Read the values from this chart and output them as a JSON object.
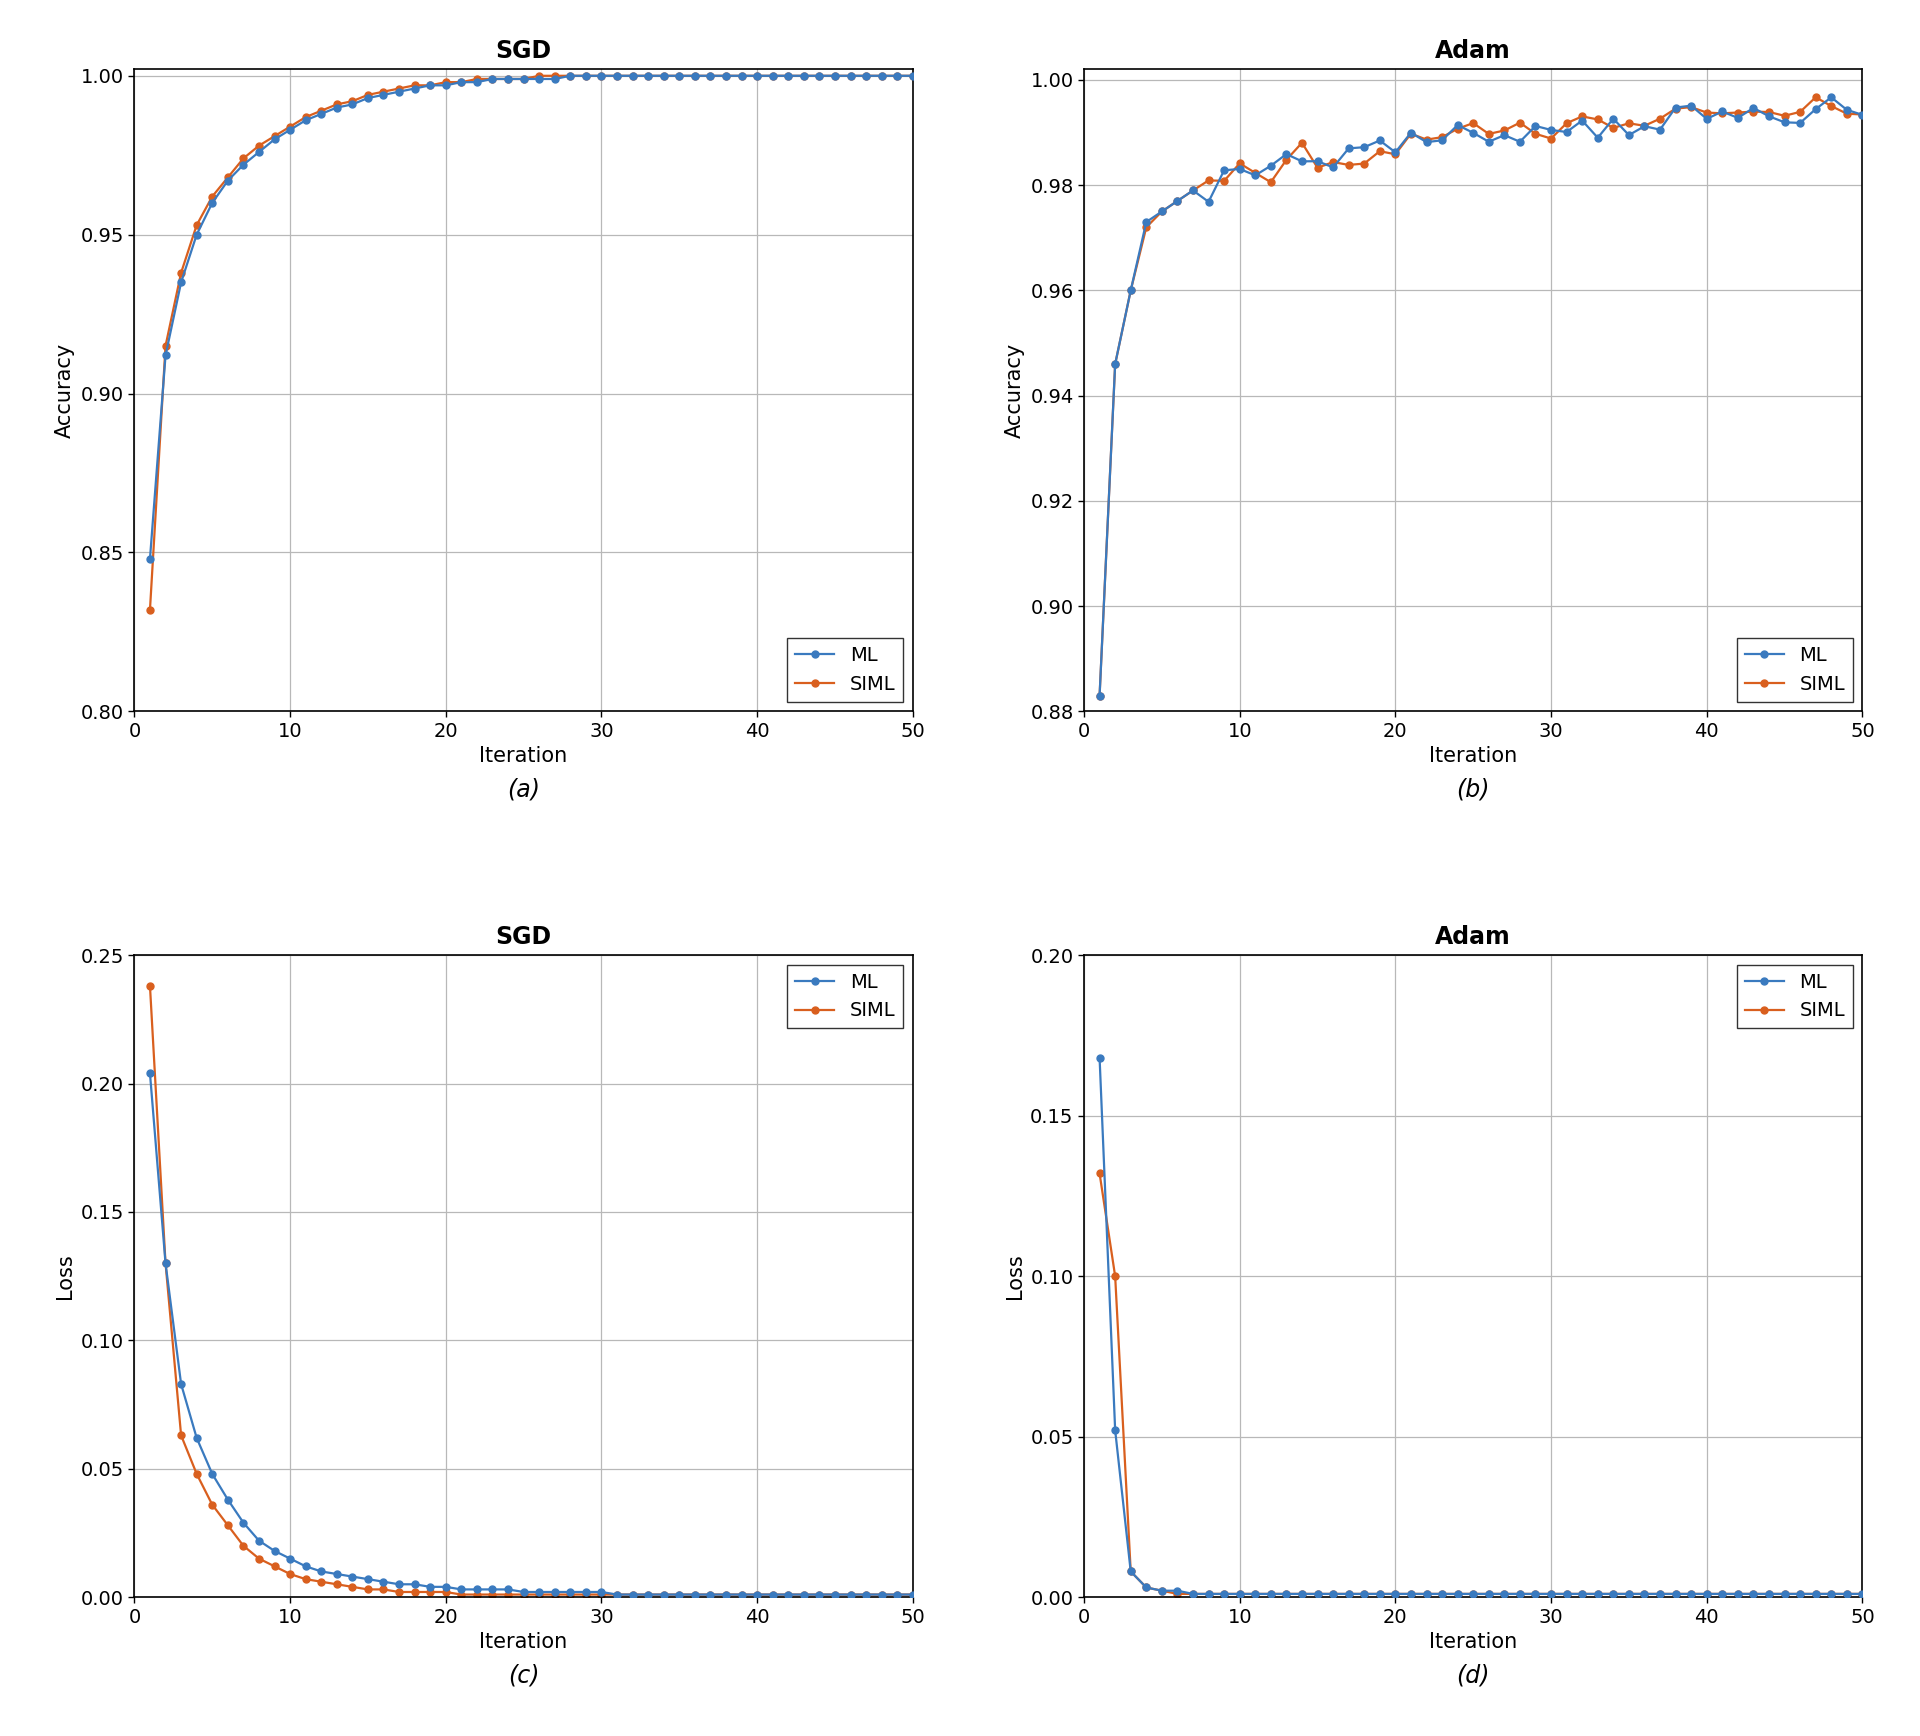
{
  "sgd_acc_ml": [
    0.848,
    0.912,
    0.935,
    0.95,
    0.96,
    0.967,
    0.972,
    0.976,
    0.98,
    0.983,
    0.986,
    0.988,
    0.99,
    0.991,
    0.993,
    0.994,
    0.995,
    0.996,
    0.997,
    0.997,
    0.998,
    0.998,
    0.999,
    0.999,
    0.999,
    0.999,
    0.999,
    1.0,
    1.0,
    1.0,
    1.0,
    1.0,
    1.0,
    1.0,
    1.0,
    1.0,
    1.0,
    1.0,
    1.0,
    1.0,
    1.0,
    1.0,
    1.0,
    1.0,
    1.0,
    1.0,
    1.0,
    1.0,
    1.0,
    1.0
  ],
  "sgd_acc_siml": [
    0.832,
    0.915,
    0.938,
    0.953,
    0.962,
    0.968,
    0.974,
    0.978,
    0.981,
    0.984,
    0.987,
    0.989,
    0.991,
    0.992,
    0.994,
    0.995,
    0.996,
    0.997,
    0.997,
    0.998,
    0.998,
    0.999,
    0.999,
    0.999,
    0.999,
    1.0,
    1.0,
    1.0,
    1.0,
    1.0,
    1.0,
    1.0,
    1.0,
    1.0,
    1.0,
    1.0,
    1.0,
    1.0,
    1.0,
    1.0,
    1.0,
    1.0,
    1.0,
    1.0,
    1.0,
    1.0,
    1.0,
    1.0,
    1.0,
    1.0
  ],
  "adam_acc_ml": [
    0.883,
    0.946,
    0.96,
    0.973,
    0.975,
    0.977,
    0.979,
    0.98,
    0.981,
    0.982,
    0.983,
    0.984,
    0.985,
    0.985,
    0.985,
    0.986,
    0.986,
    0.987,
    0.988,
    0.989,
    0.988,
    0.988,
    0.989,
    0.989,
    0.99,
    0.99,
    0.99,
    0.991,
    0.99,
    0.991,
    0.991,
    0.991,
    0.991,
    0.992,
    0.992,
    0.992,
    0.992,
    0.993,
    0.993,
    0.993,
    0.993,
    0.993,
    0.994,
    0.994,
    0.994,
    0.994,
    0.994,
    0.994,
    0.994,
    0.994
  ],
  "adam_acc_siml": [
    0.883,
    0.946,
    0.96,
    0.972,
    0.975,
    0.977,
    0.979,
    0.98,
    0.981,
    0.982,
    0.983,
    0.984,
    0.985,
    0.985,
    0.984,
    0.986,
    0.986,
    0.986,
    0.987,
    0.988,
    0.988,
    0.989,
    0.989,
    0.989,
    0.99,
    0.99,
    0.99,
    0.991,
    0.99,
    0.991,
    0.991,
    0.992,
    0.992,
    0.992,
    0.992,
    0.992,
    0.993,
    0.993,
    0.993,
    0.993,
    0.993,
    0.993,
    0.994,
    0.994,
    0.994,
    0.994,
    0.994,
    0.994,
    0.994,
    0.994
  ],
  "sgd_loss_ml": [
    0.204,
    0.13,
    0.083,
    0.062,
    0.048,
    0.038,
    0.029,
    0.022,
    0.018,
    0.015,
    0.012,
    0.01,
    0.009,
    0.008,
    0.007,
    0.006,
    0.005,
    0.005,
    0.004,
    0.004,
    0.003,
    0.003,
    0.003,
    0.003,
    0.002,
    0.002,
    0.002,
    0.002,
    0.002,
    0.002,
    0.001,
    0.001,
    0.001,
    0.001,
    0.001,
    0.001,
    0.001,
    0.001,
    0.001,
    0.001,
    0.001,
    0.001,
    0.001,
    0.001,
    0.001,
    0.001,
    0.001,
    0.001,
    0.001,
    0.001
  ],
  "sgd_loss_siml": [
    0.238,
    0.13,
    0.063,
    0.048,
    0.036,
    0.028,
    0.02,
    0.015,
    0.012,
    0.009,
    0.007,
    0.006,
    0.005,
    0.004,
    0.003,
    0.003,
    0.002,
    0.002,
    0.002,
    0.002,
    0.001,
    0.001,
    0.001,
    0.001,
    0.001,
    0.001,
    0.001,
    0.001,
    0.001,
    0.001,
    0.001,
    0.001,
    0.001,
    0.001,
    0.001,
    0.001,
    0.001,
    0.001,
    0.001,
    0.001,
    0.001,
    0.001,
    0.001,
    0.001,
    0.001,
    0.001,
    0.001,
    0.001,
    0.001,
    0.001
  ],
  "adam_loss_ml": [
    0.168,
    0.052,
    0.008,
    0.003,
    0.002,
    0.002,
    0.001,
    0.001,
    0.001,
    0.001,
    0.001,
    0.001,
    0.001,
    0.001,
    0.001,
    0.001,
    0.001,
    0.001,
    0.001,
    0.001,
    0.001,
    0.001,
    0.001,
    0.001,
    0.001,
    0.001,
    0.001,
    0.001,
    0.001,
    0.001,
    0.001,
    0.001,
    0.001,
    0.001,
    0.001,
    0.001,
    0.001,
    0.001,
    0.001,
    0.001,
    0.001,
    0.001,
    0.001,
    0.001,
    0.001,
    0.001,
    0.001,
    0.001,
    0.001,
    0.001
  ],
  "adam_loss_siml": [
    0.132,
    0.1,
    0.008,
    0.003,
    0.002,
    0.001,
    0.001,
    0.001,
    0.001,
    0.001,
    0.001,
    0.001,
    0.001,
    0.001,
    0.001,
    0.001,
    0.001,
    0.001,
    0.001,
    0.001,
    0.001,
    0.001,
    0.001,
    0.001,
    0.001,
    0.001,
    0.001,
    0.001,
    0.001,
    0.001,
    0.001,
    0.001,
    0.001,
    0.001,
    0.001,
    0.001,
    0.001,
    0.001,
    0.001,
    0.001,
    0.001,
    0.001,
    0.001,
    0.001,
    0.001,
    0.001,
    0.001,
    0.001,
    0.001,
    0.001
  ],
  "ml_color": "#3a7abf",
  "siml_color": "#d95f1e",
  "background_color": "#ffffff",
  "grid_color": "#b8b8b8",
  "title_fontsize": 17,
  "label_fontsize": 15,
  "tick_fontsize": 14,
  "legend_fontsize": 14,
  "line_width": 1.6,
  "marker_size": 5,
  "subfig_label_fontsize": 17
}
